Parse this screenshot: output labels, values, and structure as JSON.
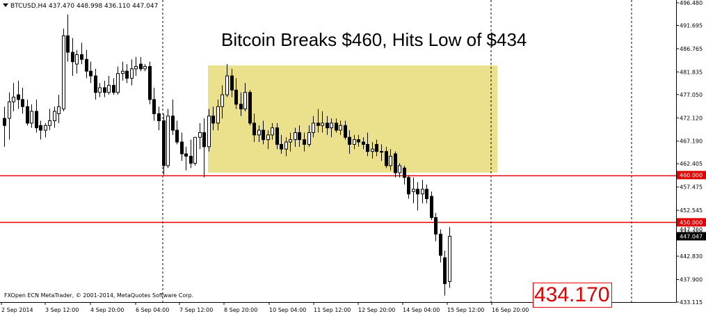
{
  "header": {
    "symbol_line": "BTCUSD,H4  437.470 448.998 436.110 447.047"
  },
  "headline": "Bitcoin Breaks $460, Hits Low of $434",
  "footer": {
    "copyright": "FXOpen ECN MetaTrader, © 2001-2014, MetaQuotes Software Corp."
  },
  "low_label": "434.170",
  "colors": {
    "background": "#ffffff",
    "candle_stroke": "#000000",
    "bear_fill": "#000000",
    "bull_fill": "#ffffff",
    "level_line": "#e00000",
    "highlight_box": "#ebe08c",
    "grid": "#000000"
  },
  "chart_data": {
    "type": "candlestick",
    "title": "Bitcoin Breaks $460, Hits Low of $434",
    "symbol": "BTCUSD",
    "timeframe": "H4",
    "ylim": [
      433.11,
      496.48
    ],
    "y_ticks": [
      "496.480",
      "491.695",
      "486.765",
      "481.835",
      "477.050",
      "472.120",
      "467.190",
      "462.405",
      "457.475",
      "452.545",
      "447.760",
      "442.830",
      "437.900",
      "433.115"
    ],
    "x_ticks": [
      "2 Sep 2014",
      "3 Sep 12:00",
      "4 Sep 20:00",
      "6 Sep 04:00",
      "7 Sep 12:00",
      "8 Sep 20:00",
      "10 Sep 04:00",
      "11 Sep 12:00",
      "12 Sep 20:00",
      "14 Sep 04:00",
      "15 Sep 12:00",
      "16 Sep 20:00"
    ],
    "horizontal_levels": [
      {
        "label": "460.000",
        "value": 460.0
      },
      {
        "label": "450.000",
        "value": 450.0
      }
    ],
    "current_price_label": "447.047",
    "hidden_tick_label": "447.760",
    "low_annotation": "434.170",
    "highlight_range": {
      "price_low": 459.9,
      "price_high": 483.2
    },
    "candles": [
      {
        "o": 472.0,
        "h": 474.5,
        "l": 466.0,
        "c": 470.5
      },
      {
        "o": 472.0,
        "h": 477.5,
        "l": 467.5,
        "c": 475.5
      },
      {
        "o": 475.5,
        "h": 479.5,
        "l": 473.5,
        "c": 476.5
      },
      {
        "o": 477.0,
        "h": 480.0,
        "l": 474.0,
        "c": 476.0
      },
      {
        "o": 476.0,
        "h": 478.5,
        "l": 473.0,
        "c": 474.5
      },
      {
        "o": 474.5,
        "h": 476.0,
        "l": 470.5,
        "c": 471.0
      },
      {
        "o": 471.0,
        "h": 475.0,
        "l": 470.0,
        "c": 473.5
      },
      {
        "o": 473.5,
        "h": 476.0,
        "l": 469.0,
        "c": 470.0
      },
      {
        "o": 470.5,
        "h": 471.5,
        "l": 467.5,
        "c": 469.5
      },
      {
        "o": 469.5,
        "h": 471.0,
        "l": 468.0,
        "c": 470.5
      },
      {
        "o": 470.5,
        "h": 474.0,
        "l": 469.5,
        "c": 471.5
      },
      {
        "o": 471.5,
        "h": 474.5,
        "l": 470.0,
        "c": 473.5
      },
      {
        "o": 473.0,
        "h": 477.0,
        "l": 471.0,
        "c": 474.5
      },
      {
        "o": 474.0,
        "h": 491.0,
        "l": 473.5,
        "c": 489.5
      },
      {
        "o": 489.5,
        "h": 494.0,
        "l": 484.0,
        "c": 486.0
      },
      {
        "o": 486.0,
        "h": 489.0,
        "l": 481.0,
        "c": 484.0
      },
      {
        "o": 483.5,
        "h": 486.5,
        "l": 481.5,
        "c": 485.5
      },
      {
        "o": 485.5,
        "h": 488.0,
        "l": 483.5,
        "c": 484.5
      },
      {
        "o": 484.5,
        "h": 486.5,
        "l": 480.5,
        "c": 482.0
      },
      {
        "o": 482.0,
        "h": 484.0,
        "l": 479.5,
        "c": 481.0
      },
      {
        "o": 481.0,
        "h": 482.5,
        "l": 476.0,
        "c": 477.5
      },
      {
        "o": 477.5,
        "h": 479.5,
        "l": 476.5,
        "c": 478.5
      },
      {
        "o": 478.5,
        "h": 480.0,
        "l": 476.5,
        "c": 477.5
      },
      {
        "o": 477.5,
        "h": 481.0,
        "l": 477.0,
        "c": 479.0
      },
      {
        "o": 479.0,
        "h": 480.5,
        "l": 477.0,
        "c": 477.5
      },
      {
        "o": 477.5,
        "h": 483.0,
        "l": 477.0,
        "c": 481.5
      },
      {
        "o": 481.5,
        "h": 484.0,
        "l": 480.0,
        "c": 482.0
      },
      {
        "o": 482.0,
        "h": 483.5,
        "l": 479.5,
        "c": 480.5
      },
      {
        "o": 480.5,
        "h": 484.5,
        "l": 479.0,
        "c": 482.5
      },
      {
        "o": 482.5,
        "h": 485.0,
        "l": 481.0,
        "c": 483.0
      },
      {
        "o": 483.5,
        "h": 485.0,
        "l": 482.0,
        "c": 482.5
      },
      {
        "o": 482.5,
        "h": 483.5,
        "l": 482.0,
        "c": 483.0
      },
      {
        "o": 483.0,
        "h": 484.0,
        "l": 475.0,
        "c": 476.0
      },
      {
        "o": 476.0,
        "h": 478.5,
        "l": 471.5,
        "c": 473.0
      },
      {
        "o": 473.0,
        "h": 474.5,
        "l": 469.5,
        "c": 471.5
      },
      {
        "o": 471.5,
        "h": 473.0,
        "l": 460.0,
        "c": 462.0
      },
      {
        "o": 462.0,
        "h": 474.0,
        "l": 461.5,
        "c": 472.5
      },
      {
        "o": 472.5,
        "h": 476.0,
        "l": 468.5,
        "c": 469.5
      },
      {
        "o": 469.5,
        "h": 471.5,
        "l": 466.5,
        "c": 467.0
      },
      {
        "o": 467.0,
        "h": 469.0,
        "l": 463.0,
        "c": 464.5
      },
      {
        "o": 464.5,
        "h": 466.0,
        "l": 461.0,
        "c": 464.0
      },
      {
        "o": 464.0,
        "h": 467.5,
        "l": 461.5,
        "c": 462.5
      },
      {
        "o": 462.5,
        "h": 468.0,
        "l": 462.0,
        "c": 468.0
      },
      {
        "o": 468.0,
        "h": 471.0,
        "l": 465.5,
        "c": 469.0
      },
      {
        "o": 469.0,
        "h": 472.0,
        "l": 459.5,
        "c": 466.0
      },
      {
        "o": 466.0,
        "h": 474.0,
        "l": 465.0,
        "c": 472.5
      },
      {
        "o": 472.5,
        "h": 474.5,
        "l": 469.5,
        "c": 471.0
      },
      {
        "o": 471.0,
        "h": 476.0,
        "l": 469.5,
        "c": 474.5
      },
      {
        "o": 474.5,
        "h": 479.0,
        "l": 472.0,
        "c": 477.0
      },
      {
        "o": 477.0,
        "h": 483.5,
        "l": 476.5,
        "c": 481.0
      },
      {
        "o": 481.0,
        "h": 482.5,
        "l": 476.5,
        "c": 478.0
      },
      {
        "o": 478.0,
        "h": 480.5,
        "l": 474.0,
        "c": 475.0
      },
      {
        "o": 475.0,
        "h": 477.5,
        "l": 472.5,
        "c": 474.0
      },
      {
        "o": 474.0,
        "h": 479.5,
        "l": 473.5,
        "c": 477.5
      },
      {
        "o": 477.5,
        "h": 478.0,
        "l": 470.5,
        "c": 471.0
      },
      {
        "o": 471.0,
        "h": 473.0,
        "l": 467.0,
        "c": 468.5
      },
      {
        "o": 468.5,
        "h": 470.5,
        "l": 467.0,
        "c": 469.5
      },
      {
        "o": 469.5,
        "h": 471.5,
        "l": 466.5,
        "c": 467.5
      },
      {
        "o": 467.5,
        "h": 469.5,
        "l": 465.5,
        "c": 468.5
      },
      {
        "o": 468.5,
        "h": 471.0,
        "l": 467.5,
        "c": 470.0
      },
      {
        "o": 470.0,
        "h": 471.0,
        "l": 465.5,
        "c": 466.5
      },
      {
        "o": 466.5,
        "h": 468.5,
        "l": 464.5,
        "c": 465.5
      },
      {
        "o": 465.5,
        "h": 468.0,
        "l": 464.0,
        "c": 467.0
      },
      {
        "o": 467.0,
        "h": 469.0,
        "l": 465.0,
        "c": 467.5
      },
      {
        "o": 467.5,
        "h": 470.0,
        "l": 466.0,
        "c": 469.0
      },
      {
        "o": 469.0,
        "h": 470.5,
        "l": 466.0,
        "c": 467.5
      },
      {
        "o": 467.5,
        "h": 469.0,
        "l": 465.0,
        "c": 466.5
      },
      {
        "o": 466.5,
        "h": 470.5,
        "l": 466.0,
        "c": 469.0
      },
      {
        "o": 469.0,
        "h": 472.5,
        "l": 468.0,
        "c": 471.0
      },
      {
        "o": 471.0,
        "h": 474.0,
        "l": 469.0,
        "c": 470.5
      },
      {
        "o": 470.5,
        "h": 473.5,
        "l": 469.0,
        "c": 471.0
      },
      {
        "o": 471.0,
        "h": 472.5,
        "l": 468.5,
        "c": 470.0
      },
      {
        "o": 470.0,
        "h": 472.0,
        "l": 468.0,
        "c": 471.0
      },
      {
        "o": 471.0,
        "h": 472.0,
        "l": 469.0,
        "c": 469.5
      },
      {
        "o": 469.5,
        "h": 471.5,
        "l": 468.5,
        "c": 470.5
      },
      {
        "o": 470.5,
        "h": 471.5,
        "l": 467.5,
        "c": 468.0
      },
      {
        "o": 468.0,
        "h": 469.5,
        "l": 464.5,
        "c": 466.5
      },
      {
        "o": 466.5,
        "h": 468.5,
        "l": 465.5,
        "c": 467.5
      },
      {
        "o": 467.5,
        "h": 468.5,
        "l": 466.0,
        "c": 467.0
      },
      {
        "o": 467.0,
        "h": 468.0,
        "l": 465.5,
        "c": 466.5
      },
      {
        "o": 466.5,
        "h": 469.0,
        "l": 464.0,
        "c": 465.0
      },
      {
        "o": 465.0,
        "h": 467.0,
        "l": 463.5,
        "c": 465.5
      },
      {
        "o": 466.5,
        "h": 467.5,
        "l": 464.0,
        "c": 465.0
      },
      {
        "o": 465.0,
        "h": 466.5,
        "l": 463.0,
        "c": 465.0
      },
      {
        "o": 465.0,
        "h": 466.0,
        "l": 461.5,
        "c": 462.0
      },
      {
        "o": 462.0,
        "h": 465.5,
        "l": 461.0,
        "c": 464.0
      },
      {
        "o": 464.5,
        "h": 465.0,
        "l": 459.5,
        "c": 460.5
      },
      {
        "o": 460.5,
        "h": 462.5,
        "l": 459.5,
        "c": 462.0
      },
      {
        "o": 461.5,
        "h": 462.0,
        "l": 458.0,
        "c": 459.5
      },
      {
        "o": 459.5,
        "h": 460.0,
        "l": 455.0,
        "c": 456.0
      },
      {
        "o": 456.5,
        "h": 459.5,
        "l": 454.0,
        "c": 457.0
      },
      {
        "o": 457.0,
        "h": 458.5,
        "l": 452.5,
        "c": 456.0
      },
      {
        "o": 456.0,
        "h": 459.0,
        "l": 454.0,
        "c": 457.0
      },
      {
        "o": 457.0,
        "h": 458.0,
        "l": 454.0,
        "c": 455.0
      },
      {
        "o": 455.5,
        "h": 456.5,
        "l": 450.5,
        "c": 451.0
      },
      {
        "o": 451.0,
        "h": 452.0,
        "l": 446.0,
        "c": 447.5
      },
      {
        "o": 447.5,
        "h": 448.5,
        "l": 441.5,
        "c": 443.0
      },
      {
        "o": 442.5,
        "h": 444.0,
        "l": 434.5,
        "c": 437.0
      },
      {
        "o": 437.47,
        "h": 448.998,
        "l": 436.11,
        "c": 447.047
      }
    ]
  }
}
